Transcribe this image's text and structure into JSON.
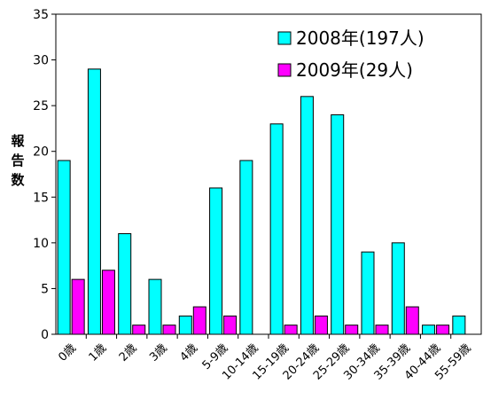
{
  "chart_data": {
    "type": "bar",
    "title": "",
    "ylabel": "報告数",
    "xlabel": "",
    "ylim": [
      0,
      35
    ],
    "yticks": [
      0,
      5,
      10,
      15,
      20,
      25,
      30,
      35
    ],
    "grid": false,
    "legend_position": "top-right",
    "categories": [
      "0歳",
      "1歳",
      "2歳",
      "3歳",
      "4歳",
      "5-9歳",
      "10-14歳",
      "15-19歳",
      "20-24歳",
      "25-29歳",
      "30-34歳",
      "35-39歳",
      "40-44歳",
      "55-59歳"
    ],
    "series": [
      {
        "name": "2008年(197人)",
        "color": "#00ffff",
        "values": [
          19,
          29,
          11,
          6,
          2,
          16,
          19,
          23,
          26,
          24,
          9,
          10,
          1,
          2
        ]
      },
      {
        "name": "2009年(29人)",
        "color": "#ff00ff",
        "values": [
          6,
          7,
          1,
          1,
          3,
          2,
          null,
          1,
          2,
          1,
          1,
          3,
          1,
          null
        ]
      }
    ]
  }
}
